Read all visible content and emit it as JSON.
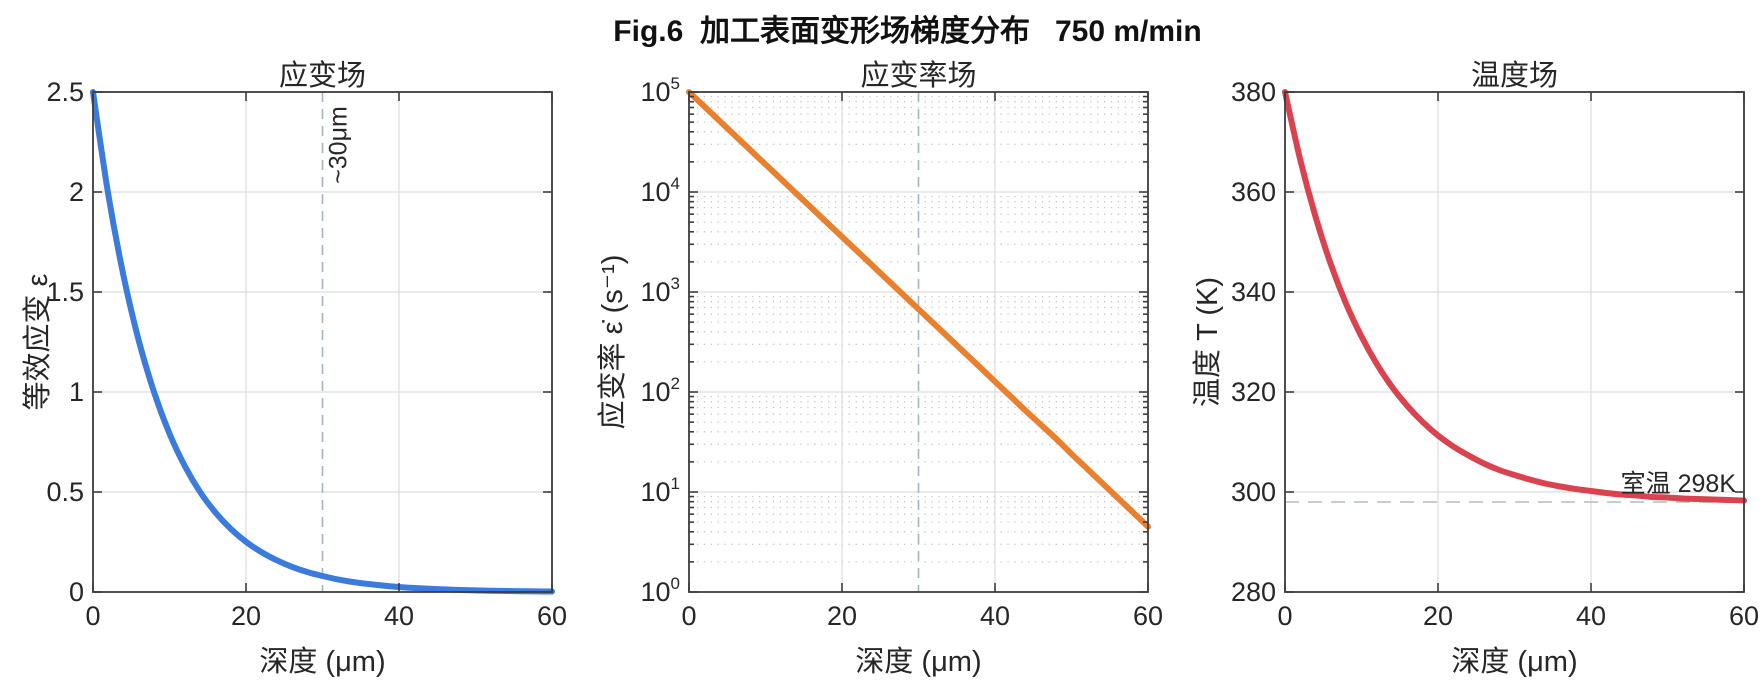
{
  "figure": {
    "title": "Fig.6  加工表面变形场梯度分布   750 m/min",
    "background": "#ffffff"
  },
  "chart_data": [
    {
      "type": "line",
      "title": "应变场",
      "xlabel": "深度 (μm)",
      "ylabel": "等效应变 ε",
      "xlim": [
        0,
        60
      ],
      "ylim": [
        0,
        2.5
      ],
      "x_ticks": [
        0,
        20,
        40,
        60
      ],
      "x_tick_labels": [
        "0",
        "20",
        "40",
        "60"
      ],
      "y_scale": "linear",
      "y_ticks": [
        0,
        0.5,
        1,
        1.5,
        2,
        2.5
      ],
      "y_tick_labels": [
        "0",
        "0.5",
        "1",
        "1.5",
        "2",
        "2.5"
      ],
      "grid": {
        "major": true,
        "minor": false
      },
      "series": [
        {
          "color": "#3a7bdc",
          "line_width": 6,
          "x": [
            0,
            2,
            4,
            6,
            8,
            10,
            12,
            14,
            16,
            18,
            20,
            22,
            24,
            26,
            28,
            30,
            32,
            34,
            36,
            38,
            40,
            42,
            44,
            46,
            48,
            50,
            52,
            54,
            56,
            58,
            60
          ],
          "y": [
            2.5,
            1.987,
            1.579,
            1.254,
            0.997,
            0.792,
            0.63,
            0.5,
            0.398,
            0.316,
            0.251,
            0.2,
            0.159,
            0.126,
            0.1,
            0.08,
            0.063,
            0.05,
            0.04,
            0.032,
            0.025,
            0.02,
            0.016,
            0.013,
            0.01,
            0.008,
            0.006,
            0.005,
            0.004,
            0.003,
            0.0025
          ]
        }
      ],
      "annotations": [
        {
          "kind": "vline",
          "x": 30,
          "line_style": "dashed",
          "color": "#a6b4c6",
          "label": "~30μm",
          "label_color": "#9fb0c2",
          "label_rotation": -90
        }
      ]
    },
    {
      "type": "line",
      "title": "应变率场",
      "xlabel": "深度 (μm)",
      "ylabel": "应变率 ε̇ (s⁻¹)",
      "xlim": [
        0,
        60
      ],
      "ylim": [
        1,
        100000
      ],
      "x_ticks": [
        0,
        20,
        40,
        60
      ],
      "x_tick_labels": [
        "0",
        "20",
        "40",
        "60"
      ],
      "y_scale": "log",
      "y_ticks_exp": [
        0,
        1,
        2,
        3,
        4,
        5
      ],
      "grid": {
        "major": true,
        "minor": true
      },
      "series": [
        {
          "color": "#e8802e",
          "line_width": 6,
          "x": [
            0,
            2,
            4,
            6,
            8,
            10,
            12,
            14,
            16,
            18,
            20,
            22,
            24,
            26,
            28,
            30,
            32,
            34,
            36,
            38,
            40,
            42,
            44,
            46,
            48,
            50,
            52,
            54,
            56,
            58,
            60
          ],
          "y": [
            100000,
            71653,
            51342,
            36788,
            26360,
            18888,
            13534,
            9697,
            6948,
            4979,
            3567,
            2556,
            1832,
            1312,
            940,
            674,
            483,
            346,
            248,
            178,
            127,
            91,
            65,
            47,
            34,
            24,
            17.2,
            12.3,
            8.8,
            6.3,
            4.5
          ]
        }
      ],
      "annotations": [
        {
          "kind": "vline",
          "x": 30,
          "line_style": "dashed",
          "color": "#a6b4c6",
          "label": "",
          "label_color": "#9fb0c2",
          "label_rotation": -90
        }
      ]
    },
    {
      "type": "line",
      "title": "温度场",
      "xlabel": "深度 (μm)",
      "ylabel": "温度 T (K)",
      "xlim": [
        0,
        60
      ],
      "ylim": [
        280,
        380
      ],
      "x_ticks": [
        0,
        20,
        40,
        60
      ],
      "x_tick_labels": [
        "0",
        "20",
        "40",
        "60"
      ],
      "y_scale": "linear",
      "y_ticks": [
        280,
        300,
        320,
        340,
        360,
        380
      ],
      "y_tick_labels": [
        "280",
        "300",
        "320",
        "340",
        "360",
        "380"
      ],
      "grid": {
        "major": true,
        "minor": false
      },
      "series": [
        {
          "color": "#d94350",
          "line_width": 6,
          "x": [
            0,
            2,
            4,
            6,
            8,
            10,
            12,
            14,
            16,
            18,
            20,
            22,
            24,
            26,
            28,
            30,
            32,
            34,
            36,
            38,
            40,
            42,
            44,
            46,
            48,
            50,
            52,
            54,
            56,
            58,
            60
          ],
          "y": [
            380,
            366.4,
            355,
            345.5,
            337.6,
            331.1,
            325.6,
            321,
            317.2,
            314,
            311.3,
            309.1,
            307.3,
            305.7,
            304.4,
            303.4,
            302.5,
            301.7,
            301.1,
            300.6,
            300.2,
            299.8,
            299.5,
            299.3,
            299,
            298.9,
            298.7,
            298.6,
            298.5,
            298.4,
            298.3
          ]
        }
      ],
      "annotations": [
        {
          "kind": "hline",
          "y": 298,
          "line_style": "dashed",
          "color": "#b3bcc6",
          "label": "室温 298K",
          "label_color": "#98a6b4"
        }
      ]
    }
  ]
}
